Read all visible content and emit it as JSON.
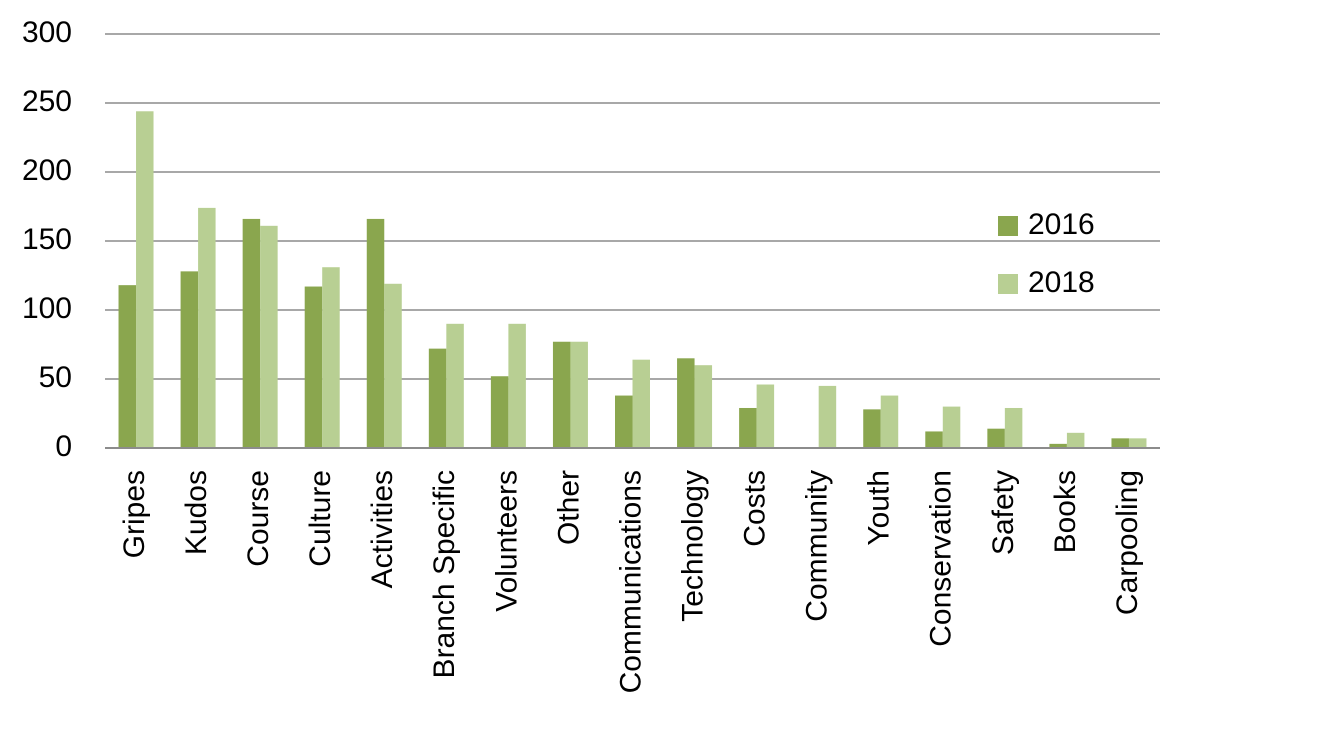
{
  "chart_data": {
    "type": "bar",
    "categories": [
      "Gripes",
      "Kudos",
      "Course",
      "Culture",
      "Activities",
      "Branch Specific",
      "Volunteers",
      "Other",
      "Communications",
      "Technology",
      "Costs",
      "Community",
      "Youth",
      "Conservation",
      "Safety",
      "Books",
      "Carpooling"
    ],
    "series": [
      {
        "name": "2016",
        "color": "#8aa64e",
        "values": [
          118,
          128,
          166,
          117,
          166,
          72,
          52,
          77,
          38,
          65,
          29,
          0,
          28,
          12,
          14,
          3,
          7
        ]
      },
      {
        "name": "2018",
        "color": "#b8cf93",
        "values": [
          244,
          174,
          161,
          131,
          119,
          90,
          90,
          77,
          64,
          60,
          46,
          45,
          38,
          30,
          29,
          11,
          7
        ]
      }
    ],
    "ylim": [
      0,
      300
    ],
    "yticks": [
      0,
      50,
      100,
      150,
      200,
      250,
      300
    ],
    "grid": true,
    "legend": "right"
  }
}
